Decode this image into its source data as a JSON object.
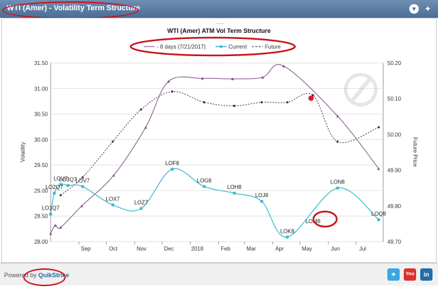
{
  "window": {
    "title": "WTI (Amer) - Volatility Term Structure"
  },
  "toolbar": {
    "collapse_icon": "chevron-down-icon",
    "share_icon": "twitter-bird-icon"
  },
  "footer": {
    "powered_label": "Powered by",
    "brand": "QuikStrike",
    "social_icons": [
      "twitter-icon",
      "youtube-icon",
      "linkedin-icon"
    ],
    "youtube_label": "You Tube",
    "linkedin_label": "in"
  },
  "colors": {
    "past": "#7a4f80",
    "current": "#35b8cc",
    "future": "#3a2a4a",
    "annotation": "#c8121b",
    "titlebar": "#4a6d96"
  },
  "chart_data": {
    "type": "line",
    "title": "WTI (Amer) ATM Vol Term Structure",
    "ylabel": "Volatility",
    "y2label": "Future Price",
    "ylim": [
      28.0,
      31.5
    ],
    "y2lim": [
      49.7,
      50.2
    ],
    "yticks": [
      "31.50",
      "31.00",
      "30.50",
      "30.00",
      "29.50",
      "29.00",
      "28.50",
      "28.00"
    ],
    "y2ticks": [
      "50.20",
      "50.10",
      "50.00",
      "49.90",
      "49.80",
      "49.70"
    ],
    "x_range": [
      "2017-08-01",
      "2018-07-31"
    ],
    "xticks": [
      {
        "date": "2017-09-01",
        "label": "Sep"
      },
      {
        "date": "2017-10-01",
        "label": "Oct"
      },
      {
        "date": "2017-11-01",
        "label": "Nov"
      },
      {
        "date": "2017-12-01",
        "label": "Dec"
      },
      {
        "date": "2018-01-01",
        "label": "2018"
      },
      {
        "date": "2018-02-01",
        "label": "Feb"
      },
      {
        "date": "2018-03-01",
        "label": "Mar"
      },
      {
        "date": "2018-04-01",
        "label": "Apr"
      },
      {
        "date": "2018-05-01",
        "label": "May"
      },
      {
        "date": "2018-06-01",
        "label": "Jun"
      },
      {
        "date": "2018-07-01",
        "label": "Jul"
      }
    ],
    "legend": {
      "placement": "top-center",
      "entries": [
        "- 8 days (7/21/2017)",
        "Current",
        "Future"
      ]
    },
    "series": [
      {
        "name": "- 8 days (7/21/2017)",
        "axis": "left",
        "points": [
          {
            "x": "2017-08-01",
            "y": 28.16
          },
          {
            "x": "2017-08-06",
            "y": 28.32
          },
          {
            "x": "2017-08-12",
            "y": 28.28
          },
          {
            "x": "2017-09-04",
            "y": 28.7
          },
          {
            "x": "2017-10-09",
            "y": 29.3
          },
          {
            "x": "2017-11-13",
            "y": 30.24
          },
          {
            "x": "2017-12-08",
            "y": 31.14
          },
          {
            "x": "2018-01-14",
            "y": 31.2
          },
          {
            "x": "2018-02-16",
            "y": 31.19
          },
          {
            "x": "2018-03-21",
            "y": 31.22
          },
          {
            "x": "2018-04-13",
            "y": 31.44
          },
          {
            "x": "2018-06-11",
            "y": 30.46
          },
          {
            "x": "2018-07-26",
            "y": 29.43
          }
        ]
      },
      {
        "name": "Current",
        "axis": "left",
        "points": [
          {
            "x": "2017-08-01",
            "y": 28.54,
            "label": "LO1Q7"
          },
          {
            "x": "2017-08-05",
            "y": 28.95,
            "label": "LO2Q7"
          },
          {
            "x": "2017-08-12",
            "y": 29.12,
            "label": "LOU7"
          },
          {
            "x": "2017-08-20",
            "y": 29.1,
            "label": "LO3Q7"
          },
          {
            "x": "2017-09-05",
            "y": 29.08,
            "label": "LOV7"
          },
          {
            "x": "2017-10-08",
            "y": 28.72,
            "label": "LOX7"
          },
          {
            "x": "2017-11-08",
            "y": 28.65,
            "label": "LOZ7"
          },
          {
            "x": "2017-12-12",
            "y": 29.42,
            "label": "LOF8"
          },
          {
            "x": "2018-01-16",
            "y": 29.08,
            "label": "LOG8"
          },
          {
            "x": "2018-02-18",
            "y": 28.95,
            "label": "LOH8"
          },
          {
            "x": "2018-03-20",
            "y": 28.79,
            "label": "LOJ8"
          },
          {
            "x": "2018-04-17",
            "y": 28.09,
            "label": "LOK8"
          },
          {
            "x": "2018-06-11",
            "y": 29.05,
            "label": "LON8"
          },
          {
            "x": "2018-07-26",
            "y": 28.43,
            "label": "LOQ8"
          }
        ],
        "unmarked_labels": [
          {
            "x": "2018-05-15",
            "y": 28.4,
            "label": "LOM8"
          }
        ]
      },
      {
        "name": "Future",
        "axis": "right",
        "points": [
          {
            "x": "2017-08-12",
            "y": 49.83
          },
          {
            "x": "2017-09-05",
            "y": 49.88
          },
          {
            "x": "2017-10-08",
            "y": 49.98
          },
          {
            "x": "2017-11-08",
            "y": 50.07
          },
          {
            "x": "2017-12-12",
            "y": 50.12
          },
          {
            "x": "2018-01-16",
            "y": 50.09
          },
          {
            "x": "2018-02-18",
            "y": 50.08
          },
          {
            "x": "2018-03-20",
            "y": 50.09
          },
          {
            "x": "2018-04-17",
            "y": 50.09
          },
          {
            "x": "2018-05-15",
            "y": 50.11
          },
          {
            "x": "2018-06-11",
            "y": 49.98
          },
          {
            "x": "2018-07-26",
            "y": 50.02
          }
        ]
      }
    ],
    "annotation_dot": {
      "x": "2018-05-13",
      "y": 30.81
    },
    "grid": true
  }
}
